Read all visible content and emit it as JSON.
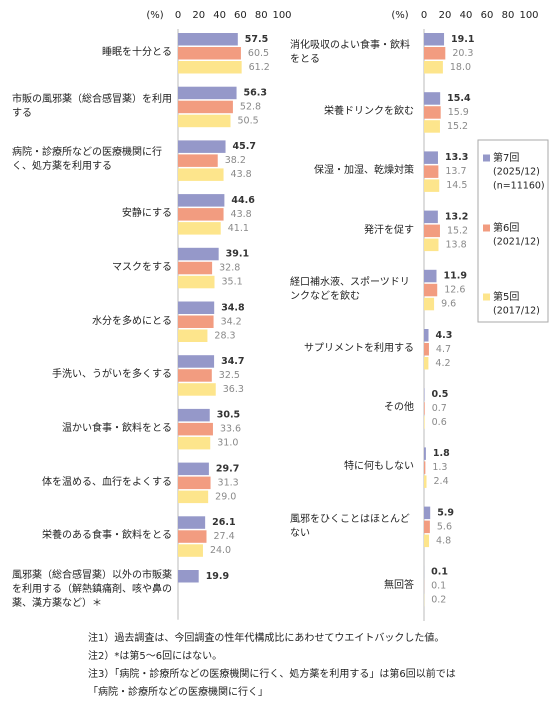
{
  "chart_data": [
    {
      "type": "bar",
      "orientation": "horizontal",
      "unit_label": "(%)",
      "categories": [
        "睡眠を十分とる",
        "市販の風邪薬（総合感冒薬）を利用する",
        "病院・診療所などの医療機関に行く、処方薬を利用する",
        "安静にする",
        "マスクをする",
        "水分を多めにとる",
        "手洗い、うがいを多くする",
        "温かい食事・飲料をとる",
        "体を温める、血行をよくする",
        "栄養のある食事・飲料をとる",
        "風邪薬（総合感冒薬）以外の市販薬を利用する（解熱鎮痛剤、咳や鼻の薬、漢方薬など）＊"
      ],
      "series": [
        {
          "color": "#9598c9",
          "values": [
            57.5,
            56.3,
            45.7,
            44.6,
            39.1,
            34.8,
            34.7,
            30.5,
            29.7,
            26.1,
            19.9
          ],
          "value_labels": [
            "57.5",
            "56.3",
            "45.7",
            "44.6",
            "39.1",
            "34.8",
            "34.7",
            "30.5",
            "29.7",
            "26.1",
            "19.9"
          ]
        },
        {
          "color": "#f29c80",
          "values": [
            60.5,
            52.8,
            38.2,
            43.8,
            32.8,
            34.2,
            32.5,
            33.6,
            31.3,
            27.4,
            null
          ],
          "value_labels": [
            "60.5",
            "52.8",
            "38.2",
            "43.8",
            "32.8",
            "34.2",
            "32.5",
            "33.6",
            "31.3",
            "27.4",
            null
          ]
        },
        {
          "color": "#fde58c",
          "values": [
            61.2,
            50.5,
            43.8,
            41.1,
            35.1,
            28.3,
            36.3,
            31.0,
            29.0,
            24.0,
            null
          ],
          "value_labels": [
            "61.2",
            "50.5",
            "43.8",
            "41.1",
            "35.1",
            "28.3",
            "36.3",
            "31.0",
            "29.0",
            "24.0",
            null
          ]
        }
      ],
      "xlim": [
        0,
        100
      ],
      "xticks": [
        0,
        20,
        40,
        60,
        80,
        100
      ],
      "grid": false
    },
    {
      "type": "bar",
      "orientation": "horizontal",
      "unit_label": "(%)",
      "categories": [
        "消化吸収のよい食事・飲料をとる",
        "栄養ドリンクを飲む",
        "保湿・加湿、乾燥対策",
        "発汗を促す",
        "経口補水液、スポーツドリンクなどを飲む",
        "サプリメントを利用する",
        "その他",
        "特に何もしない",
        "風邪をひくことはほとんどない",
        "無回答"
      ],
      "series": [
        {
          "name": "第7回",
          "period": "(2025/12)",
          "sample": "(n=11160)",
          "color": "#9598c9",
          "values": [
            19.1,
            15.4,
            13.3,
            13.2,
            11.9,
            4.3,
            0.5,
            1.8,
            5.9,
            0.1
          ],
          "value_labels": [
            "19.1",
            "15.4",
            "13.3",
            "13.2",
            "11.9",
            "4.3",
            "0.5",
            "1.8",
            "5.9",
            "0.1"
          ]
        },
        {
          "name": "第6回",
          "period": "(2021/12)",
          "color": "#f29c80",
          "values": [
            20.3,
            15.9,
            13.7,
            15.2,
            12.6,
            4.7,
            0.7,
            1.3,
            5.6,
            0.1
          ],
          "value_labels": [
            "20.3",
            "15.9",
            "13.7",
            "15.2",
            "12.6",
            "4.7",
            "0.7",
            "1.3",
            "5.6",
            "0.1"
          ]
        },
        {
          "name": "第5回",
          "period": "(2017/12)",
          "color": "#fde58c",
          "values": [
            18.0,
            15.2,
            14.5,
            13.8,
            9.6,
            4.2,
            0.6,
            2.4,
            4.8,
            0.2
          ],
          "value_labels": [
            "18.0",
            "15.2",
            "14.5",
            "13.8",
            "9.6",
            "4.2",
            "0.6",
            "2.4",
            "4.8",
            "0.2"
          ]
        }
      ],
      "xlim": [
        0,
        100
      ],
      "xticks": [
        0,
        20,
        40,
        60,
        80,
        100
      ],
      "grid": false
    }
  ],
  "notes": [
    "注1）過去調査は、今回調査の性年代構成比にあわせてウエイトバックした値。",
    "注2）*は第5～6回にはない。",
    "注3）「病院・診療所などの医療機関に行く、処方薬を利用する」は第6回以前では",
    "「病院・診療所などの医療機関に行く」"
  ]
}
